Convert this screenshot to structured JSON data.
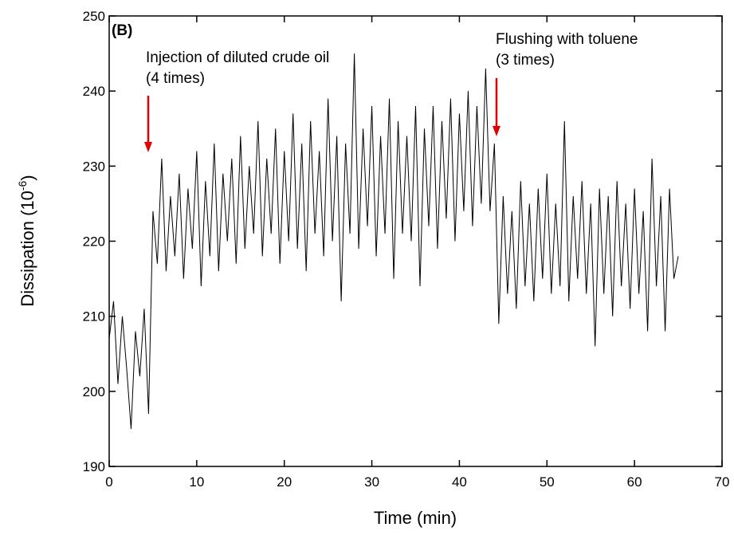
{
  "chart_data": {
    "type": "line",
    "x_label": "Time (min)",
    "y_label": "Dissipation (10",
    "y_label_exponent": "-6",
    "y_label_end": ")",
    "annotations": [
      "(B)",
      "Injection of diluted crude oil",
      "(4 times)",
      "Flushing with toluene",
      "(3 times)"
    ],
    "color": "#000000",
    "xlim": [
      0,
      70
    ],
    "xticks": [
      0,
      10,
      20,
      30,
      40,
      50,
      60,
      70
    ],
    "ylim": [
      190,
      250
    ],
    "yticks": [
      190,
      200,
      210,
      220,
      230,
      240,
      250
    ],
    "x": [
      0,
      0.5,
      1,
      1.5,
      2,
      2.5,
      3,
      3.5,
      4,
      4.5,
      5,
      5.5,
      6,
      6.5,
      7,
      7.5,
      8,
      8.5,
      9,
      9.5,
      10,
      10.5,
      11,
      11.5,
      12,
      12.5,
      13,
      13.5,
      14,
      14.5,
      15,
      15.5,
      16,
      16.5,
      17,
      17.5,
      18,
      18.5,
      19,
      19.5,
      20,
      20.5,
      21,
      21.5,
      22,
      22.5,
      23,
      23.5,
      24,
      24.5,
      25,
      25.5,
      26,
      26.5,
      27,
      27.5,
      28,
      28.5,
      29,
      29.5,
      30,
      30.5,
      31,
      31.5,
      32,
      32.5,
      33,
      33.5,
      34,
      34.5,
      35,
      35.5,
      36,
      36.5,
      37,
      37.5,
      38,
      38.5,
      39,
      39.5,
      40,
      40.5,
      41,
      41.5,
      42,
      42.5,
      43,
      43.5,
      44,
      44.5,
      45,
      45.5,
      46,
      46.5,
      47,
      47.5,
      48,
      48.5,
      49,
      49.5,
      50,
      50.5,
      51,
      51.5,
      52,
      52.5,
      53,
      53.5,
      54,
      54.5,
      55,
      55.5,
      56,
      56.5,
      57,
      57.5,
      58,
      58.5,
      59,
      59.5,
      60,
      60.5,
      61,
      61.5,
      62,
      62.5,
      63,
      63.5,
      64,
      64.5,
      65
    ],
    "values": [
      207,
      212,
      201,
      210,
      203,
      195,
      208,
      202,
      211,
      197,
      224,
      217,
      231,
      216,
      226,
      218,
      229,
      215,
      227,
      219,
      232,
      214,
      228,
      218,
      233,
      216,
      229,
      220,
      231,
      217,
      234,
      219,
      230,
      221,
      236,
      218,
      231,
      221,
      235,
      217,
      232,
      220,
      237,
      219,
      233,
      216,
      236,
      221,
      232,
      218,
      239,
      220,
      234,
      212,
      233,
      221,
      245,
      219,
      235,
      222,
      238,
      218,
      234,
      221,
      239,
      215,
      236,
      221,
      234,
      220,
      238,
      214,
      235,
      222,
      238,
      219,
      236,
      223,
      239,
      220,
      237,
      224,
      240,
      222,
      238,
      225,
      243,
      224,
      233,
      209,
      226,
      213,
      224,
      211,
      228,
      214,
      225,
      212,
      227,
      215,
      229,
      213,
      225,
      214,
      236,
      212,
      226,
      215,
      228,
      213,
      225,
      206,
      227,
      213,
      226,
      210,
      228,
      214,
      225,
      211,
      227,
      213,
      224,
      208,
      231,
      214,
      226,
      208,
      227,
      215,
      218
    ]
  }
}
